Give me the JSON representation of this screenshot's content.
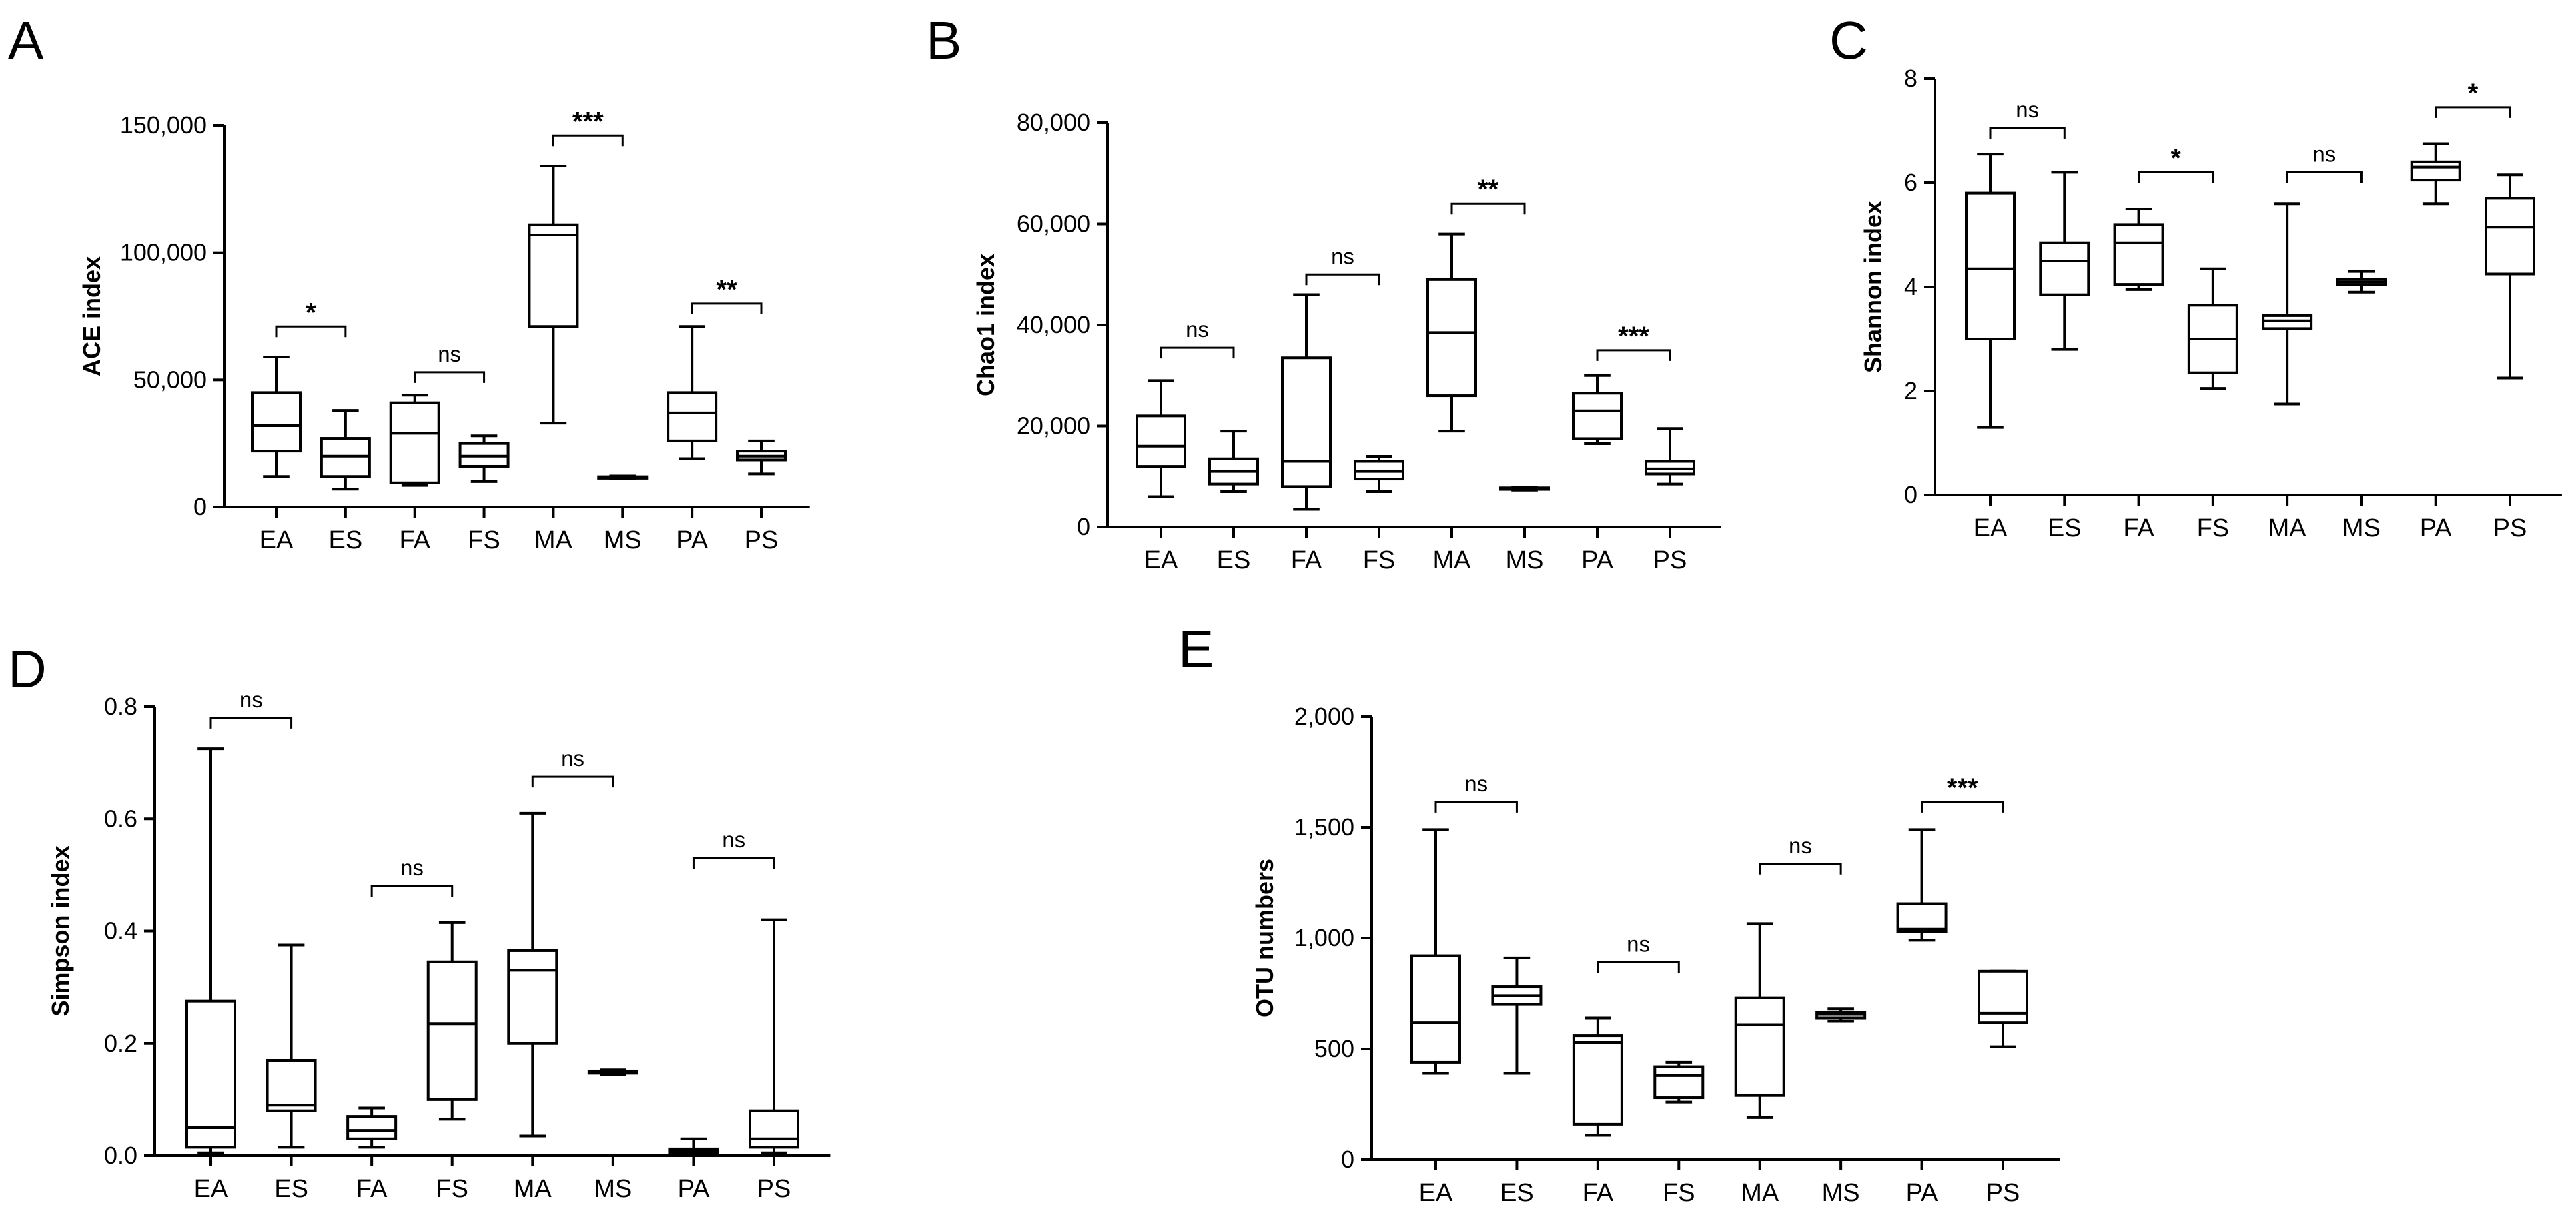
{
  "chart_data": [
    {
      "id": "A",
      "type": "box",
      "panel_label": "A",
      "ylabel": "ACE index",
      "ylim": [
        0,
        150000
      ],
      "yticks": [
        0,
        50000,
        100000,
        150000
      ],
      "ytick_labels": [
        "0",
        "50,000",
        "100,000",
        "150,000"
      ],
      "categories": [
        "EA",
        "ES",
        "FA",
        "FS",
        "MA",
        "MS",
        "PA",
        "PS"
      ],
      "boxes": [
        {
          "min": 12000,
          "q1": 22000,
          "median": 32000,
          "q3": 45000,
          "max": 59000
        },
        {
          "min": 7000,
          "q1": 12000,
          "median": 20000,
          "q3": 27000,
          "max": 38000
        },
        {
          "min": 8500,
          "q1": 9500,
          "median": 29000,
          "q3": 41000,
          "max": 44000
        },
        {
          "min": 10000,
          "q1": 16000,
          "median": 20000,
          "q3": 25000,
          "max": 28000
        },
        {
          "min": 33000,
          "q1": 71000,
          "median": 107000,
          "q3": 111000,
          "max": 134000
        },
        {
          "min": 11000,
          "q1": 11300,
          "median": 11600,
          "q3": 11900,
          "max": 12200
        },
        {
          "min": 19000,
          "q1": 26000,
          "median": 37000,
          "q3": 45000,
          "max": 71000
        },
        {
          "min": 13000,
          "q1": 18500,
          "median": 20000,
          "q3": 22000,
          "max": 26000
        }
      ],
      "comparisons": [
        {
          "pair": [
            "EA",
            "ES"
          ],
          "y": 71000,
          "label": "*"
        },
        {
          "pair": [
            "FA",
            "FS"
          ],
          "y": 53000,
          "label": "ns"
        },
        {
          "pair": [
            "MA",
            "MS"
          ],
          "y": 146000,
          "label": "***"
        },
        {
          "pair": [
            "PA",
            "PS"
          ],
          "y": 80000,
          "label": "**"
        }
      ]
    },
    {
      "id": "B",
      "type": "box",
      "panel_label": "B",
      "ylabel": "Chao1 index",
      "ylim": [
        0,
        80000
      ],
      "yticks": [
        0,
        20000,
        40000,
        60000,
        80000
      ],
      "ytick_labels": [
        "0",
        "20,000",
        "40,000",
        "60,000",
        "80,000"
      ],
      "categories": [
        "EA",
        "ES",
        "FA",
        "FS",
        "MA",
        "MS",
        "PA",
        "PS"
      ],
      "boxes": [
        {
          "min": 6000,
          "q1": 12000,
          "median": 16000,
          "q3": 22000,
          "max": 29000
        },
        {
          "min": 7000,
          "q1": 8500,
          "median": 11000,
          "q3": 13500,
          "max": 19000
        },
        {
          "min": 3500,
          "q1": 8000,
          "median": 13000,
          "q3": 33500,
          "max": 46000
        },
        {
          "min": 7000,
          "q1": 9500,
          "median": 11000,
          "q3": 13000,
          "max": 14000
        },
        {
          "min": 19000,
          "q1": 26000,
          "median": 38500,
          "q3": 49000,
          "max": 58000
        },
        {
          "min": 7300,
          "q1": 7450,
          "median": 7600,
          "q3": 7750,
          "max": 7900
        },
        {
          "min": 16500,
          "q1": 17500,
          "median": 23000,
          "q3": 26500,
          "max": 30000
        },
        {
          "min": 8500,
          "q1": 10500,
          "median": 11500,
          "q3": 13000,
          "max": 19500
        }
      ],
      "comparisons": [
        {
          "pair": [
            "EA",
            "ES"
          ],
          "y": 35500,
          "label": "ns"
        },
        {
          "pair": [
            "FA",
            "FS"
          ],
          "y": 50000,
          "label": "ns"
        },
        {
          "pair": [
            "MA",
            "MS"
          ],
          "y": 64000,
          "label": "**"
        },
        {
          "pair": [
            "PA",
            "PS"
          ],
          "y": 35000,
          "label": "***"
        }
      ]
    },
    {
      "id": "C",
      "type": "box",
      "panel_label": "C",
      "ylabel": "Shannon index",
      "ylim": [
        0,
        8
      ],
      "yticks": [
        0,
        2,
        4,
        6,
        8
      ],
      "ytick_labels": [
        "0",
        "2",
        "4",
        "6",
        "8"
      ],
      "categories": [
        "EA",
        "ES",
        "FA",
        "FS",
        "MA",
        "MS",
        "PA",
        "PS"
      ],
      "boxes": [
        {
          "min": 1.3,
          "q1": 3.0,
          "median": 4.35,
          "q3": 5.8,
          "max": 6.55
        },
        {
          "min": 2.8,
          "q1": 3.85,
          "median": 4.5,
          "q3": 4.85,
          "max": 6.2
        },
        {
          "min": 3.95,
          "q1": 4.05,
          "median": 4.85,
          "q3": 5.2,
          "max": 5.5
        },
        {
          "min": 2.05,
          "q1": 2.35,
          "median": 3.0,
          "q3": 3.65,
          "max": 4.35
        },
        {
          "min": 1.75,
          "q1": 3.2,
          "median": 3.35,
          "q3": 3.45,
          "max": 5.6
        },
        {
          "min": 3.9,
          "q1": 4.05,
          "median": 4.1,
          "q3": 4.15,
          "max": 4.3
        },
        {
          "min": 5.6,
          "q1": 6.05,
          "median": 6.3,
          "q3": 6.4,
          "max": 6.75
        },
        {
          "min": 2.25,
          "q1": 4.25,
          "median": 5.15,
          "q3": 5.7,
          "max": 6.15
        }
      ],
      "comparisons": [
        {
          "pair": [
            "EA",
            "ES"
          ],
          "y": 7.05,
          "label": "ns"
        },
        {
          "pair": [
            "FA",
            "FS"
          ],
          "y": 6.2,
          "label": "*"
        },
        {
          "pair": [
            "MA",
            "MS"
          ],
          "y": 6.2,
          "label": "ns"
        },
        {
          "pair": [
            "PA",
            "PS"
          ],
          "y": 7.45,
          "label": "*"
        }
      ]
    },
    {
      "id": "D",
      "type": "box",
      "panel_label": "D",
      "ylabel": "Simpson index",
      "ylim": [
        0,
        0.8
      ],
      "yticks": [
        0,
        0.2,
        0.4,
        0.6,
        0.8
      ],
      "ytick_labels": [
        "0.0",
        "0.2",
        "0.4",
        "0.6",
        "0.8"
      ],
      "categories": [
        "EA",
        "ES",
        "FA",
        "FS",
        "MA",
        "MS",
        "PA",
        "PS"
      ],
      "boxes": [
        {
          "min": 0.005,
          "q1": 0.015,
          "median": 0.05,
          "q3": 0.275,
          "max": 0.725
        },
        {
          "min": 0.015,
          "q1": 0.08,
          "median": 0.09,
          "q3": 0.17,
          "max": 0.375
        },
        {
          "min": 0.015,
          "q1": 0.03,
          "median": 0.045,
          "q3": 0.07,
          "max": 0.085
        },
        {
          "min": 0.065,
          "q1": 0.1,
          "median": 0.235,
          "q3": 0.345,
          "max": 0.415
        },
        {
          "min": 0.035,
          "q1": 0.2,
          "median": 0.33,
          "q3": 0.365,
          "max": 0.61
        },
        {
          "min": 0.145,
          "q1": 0.147,
          "median": 0.149,
          "q3": 0.151,
          "max": 0.153
        },
        {
          "min": 0.002,
          "q1": 0.004,
          "median": 0.008,
          "q3": 0.012,
          "max": 0.03
        },
        {
          "min": 0.005,
          "q1": 0.015,
          "median": 0.03,
          "q3": 0.08,
          "max": 0.42
        }
      ],
      "comparisons": [
        {
          "pair": [
            "EA",
            "ES"
          ],
          "y": 0.78,
          "label": "ns"
        },
        {
          "pair": [
            "FA",
            "FS"
          ],
          "y": 0.48,
          "label": "ns"
        },
        {
          "pair": [
            "MA",
            "MS"
          ],
          "y": 0.675,
          "label": "ns"
        },
        {
          "pair": [
            "PA",
            "PS"
          ],
          "y": 0.53,
          "label": "ns"
        }
      ]
    },
    {
      "id": "E",
      "type": "box",
      "panel_label": "E",
      "ylabel": "OTU numbers",
      "ylim": [
        0,
        2000
      ],
      "yticks": [
        0,
        500,
        1000,
        1500,
        2000
      ],
      "ytick_labels": [
        "0",
        "500",
        "1,000",
        "1,500",
        "2,000"
      ],
      "categories": [
        "EA",
        "ES",
        "FA",
        "FS",
        "MA",
        "MS",
        "PA",
        "PS"
      ],
      "boxes": [
        {
          "min": 390,
          "q1": 440,
          "median": 620,
          "q3": 920,
          "max": 1490
        },
        {
          "min": 390,
          "q1": 700,
          "median": 740,
          "q3": 780,
          "max": 910
        },
        {
          "min": 110,
          "q1": 160,
          "median": 530,
          "q3": 560,
          "max": 640
        },
        {
          "min": 260,
          "q1": 280,
          "median": 380,
          "q3": 420,
          "max": 440
        },
        {
          "min": 190,
          "q1": 290,
          "median": 610,
          "q3": 730,
          "max": 1065
        },
        {
          "min": 625,
          "q1": 640,
          "median": 655,
          "q3": 665,
          "max": 680
        },
        {
          "min": 990,
          "q1": 1030,
          "median": 1040,
          "q3": 1155,
          "max": 1490
        },
        {
          "min": 510,
          "q1": 620,
          "median": 660,
          "q3": 850,
          "max": 850
        }
      ],
      "comparisons": [
        {
          "pair": [
            "EA",
            "ES"
          ],
          "y": 1615,
          "label": "ns"
        },
        {
          "pair": [
            "FA",
            "FS"
          ],
          "y": 890,
          "label": "ns"
        },
        {
          "pair": [
            "MA",
            "MS"
          ],
          "y": 1335,
          "label": "ns"
        },
        {
          "pair": [
            "PA",
            "PS"
          ],
          "y": 1615,
          "label": "***"
        }
      ]
    }
  ]
}
